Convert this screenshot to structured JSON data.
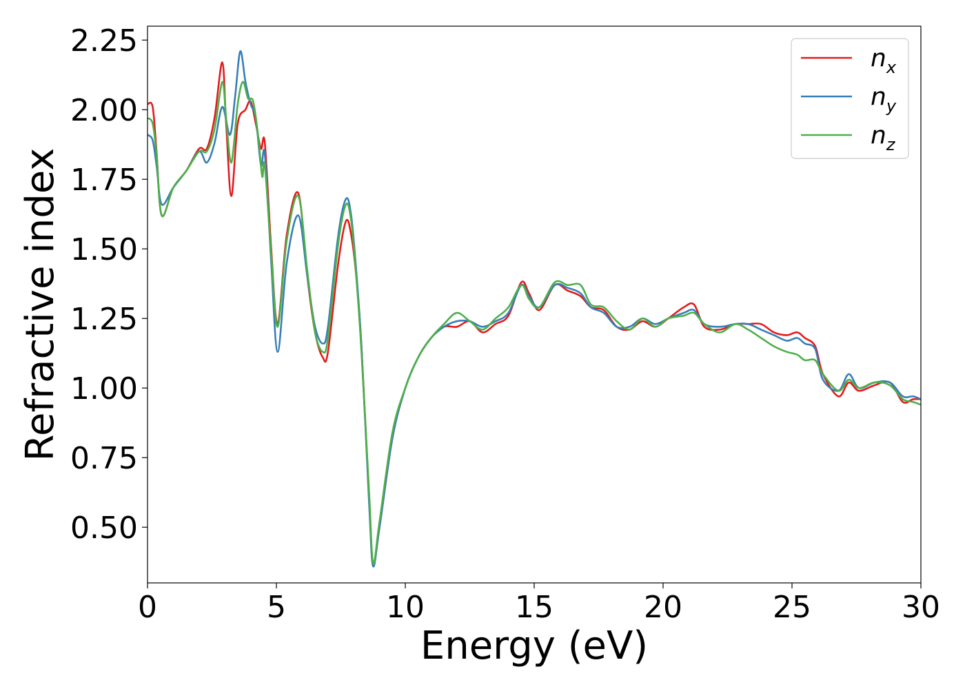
{
  "chart_data": {
    "type": "line",
    "title": "",
    "xlabel": "Energy (eV)",
    "ylabel": "Refractive index",
    "xlim": [
      0,
      30
    ],
    "ylim": [
      0.3,
      2.3
    ],
    "xticks": [
      "0",
      "5",
      "10",
      "15",
      "20",
      "25",
      "30"
    ],
    "yticks": [
      "0.50",
      "0.75",
      "1.00",
      "1.25",
      "1.50",
      "1.75",
      "2.00",
      "2.25"
    ],
    "grid": false,
    "legend_position": "top-right",
    "series": [
      {
        "name": "n_x",
        "label_main": "n",
        "label_sub": "x",
        "color": "#e41a1c",
        "points": [
          [
            0,
            2.02
          ],
          [
            0.2,
            2.01
          ],
          [
            0.35,
            1.85
          ],
          [
            0.55,
            1.62
          ],
          [
            1,
            1.72
          ],
          [
            1.5,
            1.78
          ],
          [
            2,
            1.86
          ],
          [
            2.3,
            1.86
          ],
          [
            2.6,
            1.97
          ],
          [
            2.9,
            2.17
          ],
          [
            3.05,
            1.95
          ],
          [
            3.25,
            1.69
          ],
          [
            3.5,
            1.95
          ],
          [
            3.8,
            2.0
          ],
          [
            4.0,
            2.03
          ],
          [
            4.2,
            1.95
          ],
          [
            4.4,
            1.86
          ],
          [
            4.55,
            1.88
          ],
          [
            4.8,
            1.5
          ],
          [
            5.05,
            1.23
          ],
          [
            5.4,
            1.55
          ],
          [
            5.85,
            1.7
          ],
          [
            6.2,
            1.4
          ],
          [
            6.5,
            1.2
          ],
          [
            6.8,
            1.11
          ],
          [
            7.0,
            1.13
          ],
          [
            7.4,
            1.45
          ],
          [
            7.7,
            1.6
          ],
          [
            7.9,
            1.55
          ],
          [
            8.1,
            1.4
          ],
          [
            8.3,
            1.15
          ],
          [
            8.6,
            0.6
          ],
          [
            8.75,
            0.37
          ],
          [
            9.0,
            0.5
          ],
          [
            9.5,
            0.82
          ],
          [
            10,
            1.0
          ],
          [
            10.5,
            1.11
          ],
          [
            11,
            1.18
          ],
          [
            11.5,
            1.22
          ],
          [
            12,
            1.22
          ],
          [
            12.5,
            1.24
          ],
          [
            13,
            1.2
          ],
          [
            13.5,
            1.23
          ],
          [
            14,
            1.26
          ],
          [
            14.5,
            1.38
          ],
          [
            14.8,
            1.34
          ],
          [
            15.2,
            1.28
          ],
          [
            15.8,
            1.37
          ],
          [
            16.3,
            1.35
          ],
          [
            16.8,
            1.33
          ],
          [
            17.2,
            1.29
          ],
          [
            17.7,
            1.28
          ],
          [
            18.2,
            1.22
          ],
          [
            18.7,
            1.21
          ],
          [
            19.2,
            1.24
          ],
          [
            19.7,
            1.22
          ],
          [
            20.2,
            1.25
          ],
          [
            20.8,
            1.29
          ],
          [
            21.2,
            1.3
          ],
          [
            21.6,
            1.22
          ],
          [
            22.2,
            1.21
          ],
          [
            22.8,
            1.23
          ],
          [
            23.3,
            1.23
          ],
          [
            23.8,
            1.23
          ],
          [
            24.3,
            1.2
          ],
          [
            24.8,
            1.19
          ],
          [
            25.2,
            1.2
          ],
          [
            25.5,
            1.18
          ],
          [
            25.9,
            1.15
          ],
          [
            26.2,
            1.05
          ],
          [
            26.8,
            0.97
          ],
          [
            27.2,
            1.02
          ],
          [
            27.6,
            0.99
          ],
          [
            28.2,
            1.01
          ],
          [
            28.8,
            1.02
          ],
          [
            29.3,
            0.95
          ],
          [
            29.7,
            0.96
          ],
          [
            30,
            0.96
          ]
        ]
      },
      {
        "name": "n_y",
        "label_main": "n",
        "label_sub": "y",
        "color": "#377eb8",
        "points": [
          [
            0,
            1.91
          ],
          [
            0.2,
            1.89
          ],
          [
            0.35,
            1.8
          ],
          [
            0.55,
            1.66
          ],
          [
            1,
            1.72
          ],
          [
            1.5,
            1.78
          ],
          [
            2,
            1.85
          ],
          [
            2.3,
            1.81
          ],
          [
            2.6,
            1.88
          ],
          [
            2.9,
            2.01
          ],
          [
            3.2,
            1.91
          ],
          [
            3.4,
            2.05
          ],
          [
            3.6,
            2.21
          ],
          [
            3.8,
            2.1
          ],
          [
            4.0,
            2.02
          ],
          [
            4.2,
            1.97
          ],
          [
            4.4,
            1.8
          ],
          [
            4.55,
            1.84
          ],
          [
            4.8,
            1.45
          ],
          [
            5.05,
            1.13
          ],
          [
            5.4,
            1.45
          ],
          [
            5.85,
            1.62
          ],
          [
            6.2,
            1.4
          ],
          [
            6.5,
            1.22
          ],
          [
            6.8,
            1.16
          ],
          [
            7.0,
            1.22
          ],
          [
            7.4,
            1.55
          ],
          [
            7.7,
            1.68
          ],
          [
            7.9,
            1.62
          ],
          [
            8.1,
            1.42
          ],
          [
            8.3,
            1.15
          ],
          [
            8.6,
            0.58
          ],
          [
            8.75,
            0.36
          ],
          [
            9.0,
            0.5
          ],
          [
            9.5,
            0.82
          ],
          [
            10,
            1.0
          ],
          [
            10.5,
            1.11
          ],
          [
            11,
            1.18
          ],
          [
            11.5,
            1.22
          ],
          [
            12,
            1.24
          ],
          [
            12.5,
            1.24
          ],
          [
            13,
            1.22
          ],
          [
            13.5,
            1.24
          ],
          [
            14,
            1.27
          ],
          [
            14.5,
            1.37
          ],
          [
            14.8,
            1.33
          ],
          [
            15.2,
            1.29
          ],
          [
            15.8,
            1.37
          ],
          [
            16.3,
            1.36
          ],
          [
            16.8,
            1.34
          ],
          [
            17.2,
            1.29
          ],
          [
            17.7,
            1.27
          ],
          [
            18.2,
            1.22
          ],
          [
            18.7,
            1.22
          ],
          [
            19.2,
            1.25
          ],
          [
            19.7,
            1.23
          ],
          [
            20.2,
            1.25
          ],
          [
            20.8,
            1.27
          ],
          [
            21.2,
            1.28
          ],
          [
            21.6,
            1.23
          ],
          [
            22.2,
            1.22
          ],
          [
            22.8,
            1.23
          ],
          [
            23.3,
            1.23
          ],
          [
            23.8,
            1.21
          ],
          [
            24.3,
            1.19
          ],
          [
            24.8,
            1.17
          ],
          [
            25.2,
            1.18
          ],
          [
            25.5,
            1.16
          ],
          [
            25.9,
            1.14
          ],
          [
            26.2,
            1.03
          ],
          [
            26.8,
            0.99
          ],
          [
            27.2,
            1.05
          ],
          [
            27.6,
            1.0
          ],
          [
            28.2,
            1.02
          ],
          [
            28.8,
            1.02
          ],
          [
            29.3,
            0.97
          ],
          [
            29.7,
            0.97
          ],
          [
            30,
            0.96
          ]
        ]
      },
      {
        "name": "n_z",
        "label_main": "n",
        "label_sub": "z",
        "color": "#4daf4a",
        "points": [
          [
            0,
            1.97
          ],
          [
            0.2,
            1.95
          ],
          [
            0.35,
            1.84
          ],
          [
            0.55,
            1.62
          ],
          [
            1,
            1.72
          ],
          [
            1.5,
            1.78
          ],
          [
            2,
            1.85
          ],
          [
            2.3,
            1.85
          ],
          [
            2.6,
            1.93
          ],
          [
            2.9,
            2.1
          ],
          [
            3.05,
            1.97
          ],
          [
            3.25,
            1.81
          ],
          [
            3.5,
            2.02
          ],
          [
            3.7,
            2.1
          ],
          [
            3.9,
            2.04
          ],
          [
            4.1,
            2.03
          ],
          [
            4.3,
            1.9
          ],
          [
            4.45,
            1.76
          ],
          [
            4.55,
            1.8
          ],
          [
            4.8,
            1.48
          ],
          [
            5.05,
            1.22
          ],
          [
            5.4,
            1.53
          ],
          [
            5.85,
            1.69
          ],
          [
            6.2,
            1.42
          ],
          [
            6.5,
            1.2
          ],
          [
            6.8,
            1.13
          ],
          [
            7.0,
            1.18
          ],
          [
            7.4,
            1.52
          ],
          [
            7.7,
            1.66
          ],
          [
            7.9,
            1.6
          ],
          [
            8.1,
            1.4
          ],
          [
            8.3,
            1.13
          ],
          [
            8.6,
            0.62
          ],
          [
            8.75,
            0.37
          ],
          [
            9.0,
            0.52
          ],
          [
            9.5,
            0.84
          ],
          [
            10,
            1.0
          ],
          [
            10.5,
            1.11
          ],
          [
            11,
            1.18
          ],
          [
            11.5,
            1.23
          ],
          [
            12,
            1.27
          ],
          [
            12.5,
            1.24
          ],
          [
            13,
            1.21
          ],
          [
            13.5,
            1.25
          ],
          [
            14,
            1.29
          ],
          [
            14.5,
            1.37
          ],
          [
            14.8,
            1.32
          ],
          [
            15.2,
            1.29
          ],
          [
            15.8,
            1.38
          ],
          [
            16.3,
            1.37
          ],
          [
            16.8,
            1.37
          ],
          [
            17.2,
            1.3
          ],
          [
            17.7,
            1.29
          ],
          [
            18.2,
            1.24
          ],
          [
            18.7,
            1.21
          ],
          [
            19.2,
            1.25
          ],
          [
            19.7,
            1.22
          ],
          [
            20.2,
            1.25
          ],
          [
            20.8,
            1.26
          ],
          [
            21.2,
            1.27
          ],
          [
            21.6,
            1.23
          ],
          [
            22.2,
            1.2
          ],
          [
            22.8,
            1.23
          ],
          [
            23.3,
            1.21
          ],
          [
            23.8,
            1.18
          ],
          [
            24.3,
            1.15
          ],
          [
            24.8,
            1.13
          ],
          [
            25.2,
            1.12
          ],
          [
            25.5,
            1.1
          ],
          [
            25.9,
            1.1
          ],
          [
            26.2,
            1.05
          ],
          [
            26.8,
            0.99
          ],
          [
            27.2,
            1.03
          ],
          [
            27.6,
            1.0
          ],
          [
            28.2,
            1.02
          ],
          [
            28.8,
            1.01
          ],
          [
            29.3,
            0.96
          ],
          [
            29.7,
            0.95
          ],
          [
            30,
            0.94
          ]
        ]
      }
    ]
  }
}
